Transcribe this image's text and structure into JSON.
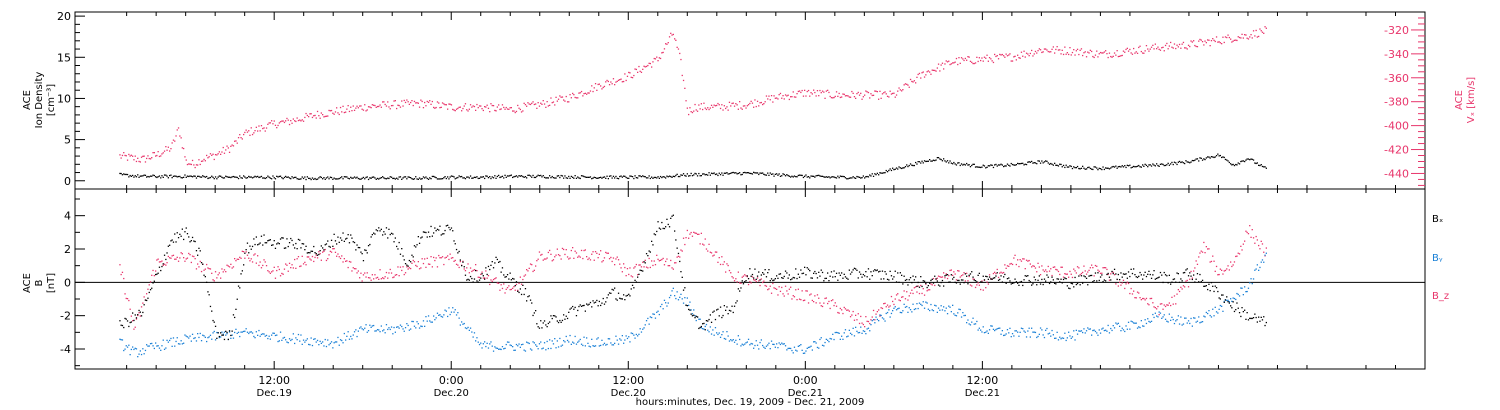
{
  "colors": {
    "black": "#000000",
    "red": "#e8356b",
    "blue": "#1a80d6"
  },
  "x_axis": {
    "ticks": [
      {
        "time": "12:00",
        "date": "Dec.19"
      },
      {
        "time": "0:00",
        "date": "Dec.20"
      },
      {
        "time": "12:00",
        "date": "Dec.20"
      },
      {
        "time": "0:00",
        "date": "Dec.21"
      },
      {
        "time": "12:00",
        "date": "Dec.21"
      }
    ],
    "title": "hours:minutes, Dec. 19, 2009 - Dec. 21, 2009"
  },
  "chart_data": [
    {
      "type": "scatter",
      "panel": "top",
      "y_left_label": [
        "ACE",
        "Ion Density",
        "[cm⁻³]"
      ],
      "y_left_ticks": [
        "0",
        "5",
        "10",
        "15",
        "20"
      ],
      "ylim_left": [
        -1,
        20.5
      ],
      "y_right_label": [
        "ACE",
        "Vₓ [km/s]"
      ],
      "y_right_ticks": [
        "-320",
        "-340",
        "-360",
        "-380",
        "-400",
        "-420",
        "-440"
      ],
      "ylim_right": [
        -453,
        -305
      ],
      "x_unit": "hours since Dec.19 00:00",
      "series": [
        {
          "color": "red",
          "axis": "right",
          "x": [
            1.5,
            3,
            4,
            5,
            5.5,
            6,
            6.5,
            7,
            8,
            9,
            10,
            11,
            12,
            13,
            14,
            15,
            16,
            18,
            20,
            22,
            24,
            26,
            28,
            30,
            32,
            34,
            36,
            38,
            39,
            39.5,
            40,
            40.5,
            41,
            42,
            44,
            46,
            48,
            50,
            52,
            54,
            56,
            58,
            60,
            62,
            64,
            66,
            68,
            70,
            72,
            74,
            76,
            78,
            79.2
          ],
          "y": [
            -425,
            -428,
            -424,
            -418,
            -402,
            -430,
            -432,
            -428,
            -424,
            -418,
            -406,
            -402,
            -398,
            -396,
            -393,
            -390,
            -388,
            -384,
            -382,
            -381,
            -384,
            -384,
            -386,
            -382,
            -376,
            -366,
            -358,
            -344,
            -322,
            -345,
            -388,
            -384,
            -384,
            -384,
            -382,
            -376,
            -372,
            -374,
            -374,
            -374,
            -356,
            -346,
            -344,
            -342,
            -336,
            -337,
            -340,
            -337,
            -334,
            -332,
            -328,
            -324,
            -320
          ]
        },
        {
          "color": "black",
          "axis": "left",
          "x": [
            1.5,
            3,
            6,
            8,
            10,
            12,
            14,
            16,
            18,
            20,
            22,
            24,
            26,
            28,
            30,
            34,
            38,
            40,
            42,
            44,
            46,
            48,
            50,
            52,
            54,
            56,
            57,
            58,
            60,
            62,
            64,
            66,
            68,
            70,
            72,
            74,
            76,
            77,
            78,
            79.2
          ],
          "y": [
            0.8,
            0.6,
            0.6,
            0.5,
            0.5,
            0.5,
            0.4,
            0.4,
            0.4,
            0.4,
            0.4,
            0.5,
            0.5,
            0.6,
            0.6,
            0.5,
            0.5,
            0.8,
            0.9,
            1.0,
            0.8,
            0.6,
            0.5,
            0.5,
            1.5,
            2.4,
            2.8,
            2.2,
            1.8,
            2.0,
            2.4,
            1.7,
            1.6,
            1.8,
            2.0,
            2.4,
            3.2,
            2.0,
            2.8,
            1.5
          ]
        }
      ]
    },
    {
      "type": "scatter",
      "panel": "bottom",
      "y_left_label": [
        "ACE",
        "B",
        "[nT]"
      ],
      "y_left_ticks": [
        "-4",
        "-2",
        "0",
        "2",
        "4"
      ],
      "ylim_left": [
        -5.2,
        5.6
      ],
      "x_unit": "hours since Dec.19 00:00",
      "series": [
        {
          "name": "Bₓ",
          "color": "black",
          "x": [
            1.5,
            3,
            5,
            6,
            7,
            8,
            9,
            10,
            11,
            12,
            13,
            14,
            15,
            16,
            17,
            18,
            19,
            20,
            21,
            22,
            24,
            25,
            26,
            27,
            28,
            29,
            30,
            32,
            33,
            34,
            35,
            36,
            37,
            38,
            39,
            40,
            41,
            42,
            43,
            44,
            46,
            48,
            50,
            52,
            54,
            56,
            58,
            60,
            62,
            64,
            66,
            68,
            70,
            72,
            73,
            74,
            75,
            76,
            77,
            78,
            79.2
          ],
          "y": [
            -2.6,
            -1.8,
            2.6,
            3.0,
            1.6,
            -3.0,
            -3.2,
            2.0,
            2.6,
            2.4,
            2.4,
            2.2,
            1.8,
            2.6,
            2.8,
            1.6,
            3.4,
            2.8,
            1.2,
            3.0,
            3.2,
            0.4,
            0.4,
            1.2,
            0.2,
            -0.6,
            -2.6,
            -1.8,
            -1.4,
            -1.2,
            -0.6,
            -1.0,
            1.2,
            3.4,
            3.8,
            -1.8,
            -2.6,
            -1.8,
            -1.6,
            0.6,
            0.4,
            0.6,
            0.4,
            0.6,
            0.4,
            0.0,
            0.2,
            0.4,
            0.2,
            0.2,
            0.0,
            0.4,
            0.6,
            0.4,
            0.2,
            0.6,
            0.0,
            -0.6,
            -1.4,
            -2.0,
            -2.4
          ]
        },
        {
          "name": "Bᵧ",
          "color": "blue",
          "x": [
            1.5,
            2.5,
            4,
            6,
            8,
            10,
            12,
            14,
            16,
            18,
            20,
            22,
            24,
            26,
            28,
            30,
            32,
            34,
            36,
            38,
            39,
            40,
            41,
            42,
            44,
            46,
            48,
            50,
            52,
            54,
            56,
            58,
            60,
            62,
            64,
            66,
            68,
            70,
            72,
            74,
            76,
            78,
            79.2
          ],
          "y": [
            -3.6,
            -4.2,
            -3.8,
            -3.4,
            -3.2,
            -3.0,
            -3.2,
            -3.4,
            -3.6,
            -2.8,
            -2.8,
            -2.4,
            -1.6,
            -3.8,
            -3.8,
            -3.8,
            -3.4,
            -3.6,
            -3.4,
            -1.8,
            -0.6,
            -1.2,
            -2.6,
            -3.0,
            -3.6,
            -3.8,
            -4.0,
            -3.2,
            -2.8,
            -1.6,
            -1.4,
            -1.6,
            -2.8,
            -3.0,
            -3.0,
            -3.2,
            -2.8,
            -2.6,
            -2.0,
            -2.4,
            -1.6,
            -0.2,
            1.8
          ]
        },
        {
          "name": "B_z",
          "color": "red",
          "x": [
            1.5,
            2.5,
            4,
            6,
            8,
            10,
            12,
            14,
            16,
            18,
            20,
            22,
            24,
            26,
            28,
            29,
            30,
            32,
            34,
            35,
            36,
            38,
            39,
            40,
            41,
            42,
            43,
            44,
            46,
            48,
            50,
            52,
            54,
            56,
            58,
            60,
            62,
            64,
            66,
            68,
            70,
            72,
            73,
            74,
            75,
            76,
            77,
            78,
            79.2
          ],
          "y": [
            1.0,
            -2.8,
            1.2,
            1.6,
            0.4,
            1.8,
            0.6,
            1.4,
            1.8,
            0.4,
            0.6,
            1.2,
            1.4,
            0.6,
            -0.6,
            0.4,
            1.6,
            1.8,
            1.6,
            1.4,
            0.6,
            1.4,
            1.0,
            3.0,
            2.6,
            1.6,
            0.4,
            0.2,
            -0.4,
            -0.8,
            -1.4,
            -2.4,
            -1.0,
            -0.4,
            0.6,
            -0.2,
            1.4,
            0.8,
            0.6,
            0.8,
            -0.4,
            -1.6,
            -1.0,
            0.2,
            2.2,
            0.6,
            1.2,
            3.2,
            1.8
          ]
        }
      ]
    }
  ]
}
